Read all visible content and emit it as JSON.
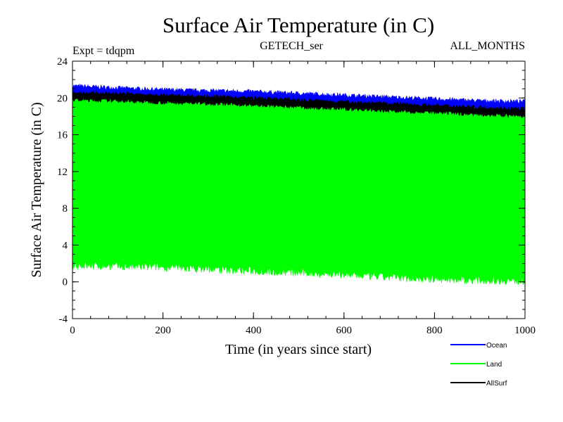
{
  "chart_data": {
    "type": "line",
    "title": "Surface Air Temperature (in C)",
    "subtitle_left": "Expt = tdqpm",
    "subtitle_center": "GETECH_ser",
    "subtitle_right": "ALL_MONTHS",
    "xlabel": "Time (in years since start)",
    "ylabel": "Surface Air Temperature (in C)",
    "xlim": [
      0,
      1000
    ],
    "ylim": [
      -4,
      24
    ],
    "xticks": [
      0,
      200,
      400,
      600,
      800,
      1000
    ],
    "yticks": [
      -4,
      0,
      4,
      8,
      12,
      16,
      20,
      24
    ],
    "x_minor_step": 40,
    "y_minor_step": 1,
    "grid": false,
    "legend_position": "bottom-right",
    "series": [
      {
        "name": "Ocean",
        "color": "#0000ff",
        "x": [
          0,
          100,
          200,
          300,
          400,
          500,
          600,
          700,
          800,
          900,
          1000
        ],
        "high": [
          21.3,
          21.1,
          20.9,
          20.8,
          20.7,
          20.5,
          20.3,
          20.1,
          19.9,
          19.7,
          19.6
        ],
        "low": [
          20.3,
          20.2,
          20.0,
          19.9,
          19.8,
          19.6,
          19.4,
          19.2,
          19.0,
          18.8,
          18.6
        ]
      },
      {
        "name": "Land",
        "color": "#00ff00",
        "x": [
          0,
          100,
          200,
          300,
          400,
          500,
          600,
          700,
          800,
          900,
          1000
        ],
        "high": [
          20.2,
          20.1,
          19.9,
          19.8,
          19.6,
          19.4,
          19.2,
          19.0,
          18.8,
          18.6,
          18.3
        ],
        "low": [
          1.8,
          1.7,
          1.6,
          1.4,
          1.2,
          1.0,
          0.8,
          0.5,
          0.3,
          0.2,
          0.1
        ]
      },
      {
        "name": "AllSurf",
        "color": "#000000",
        "x": [
          0,
          100,
          200,
          300,
          400,
          500,
          600,
          700,
          800,
          900,
          1000
        ],
        "high": [
          20.6,
          20.5,
          20.3,
          20.2,
          20.0,
          19.8,
          19.6,
          19.4,
          19.2,
          19.0,
          18.8
        ],
        "low": [
          19.8,
          19.7,
          19.5,
          19.4,
          19.2,
          19.0,
          18.8,
          18.6,
          18.4,
          18.2,
          18.0
        ]
      }
    ]
  }
}
